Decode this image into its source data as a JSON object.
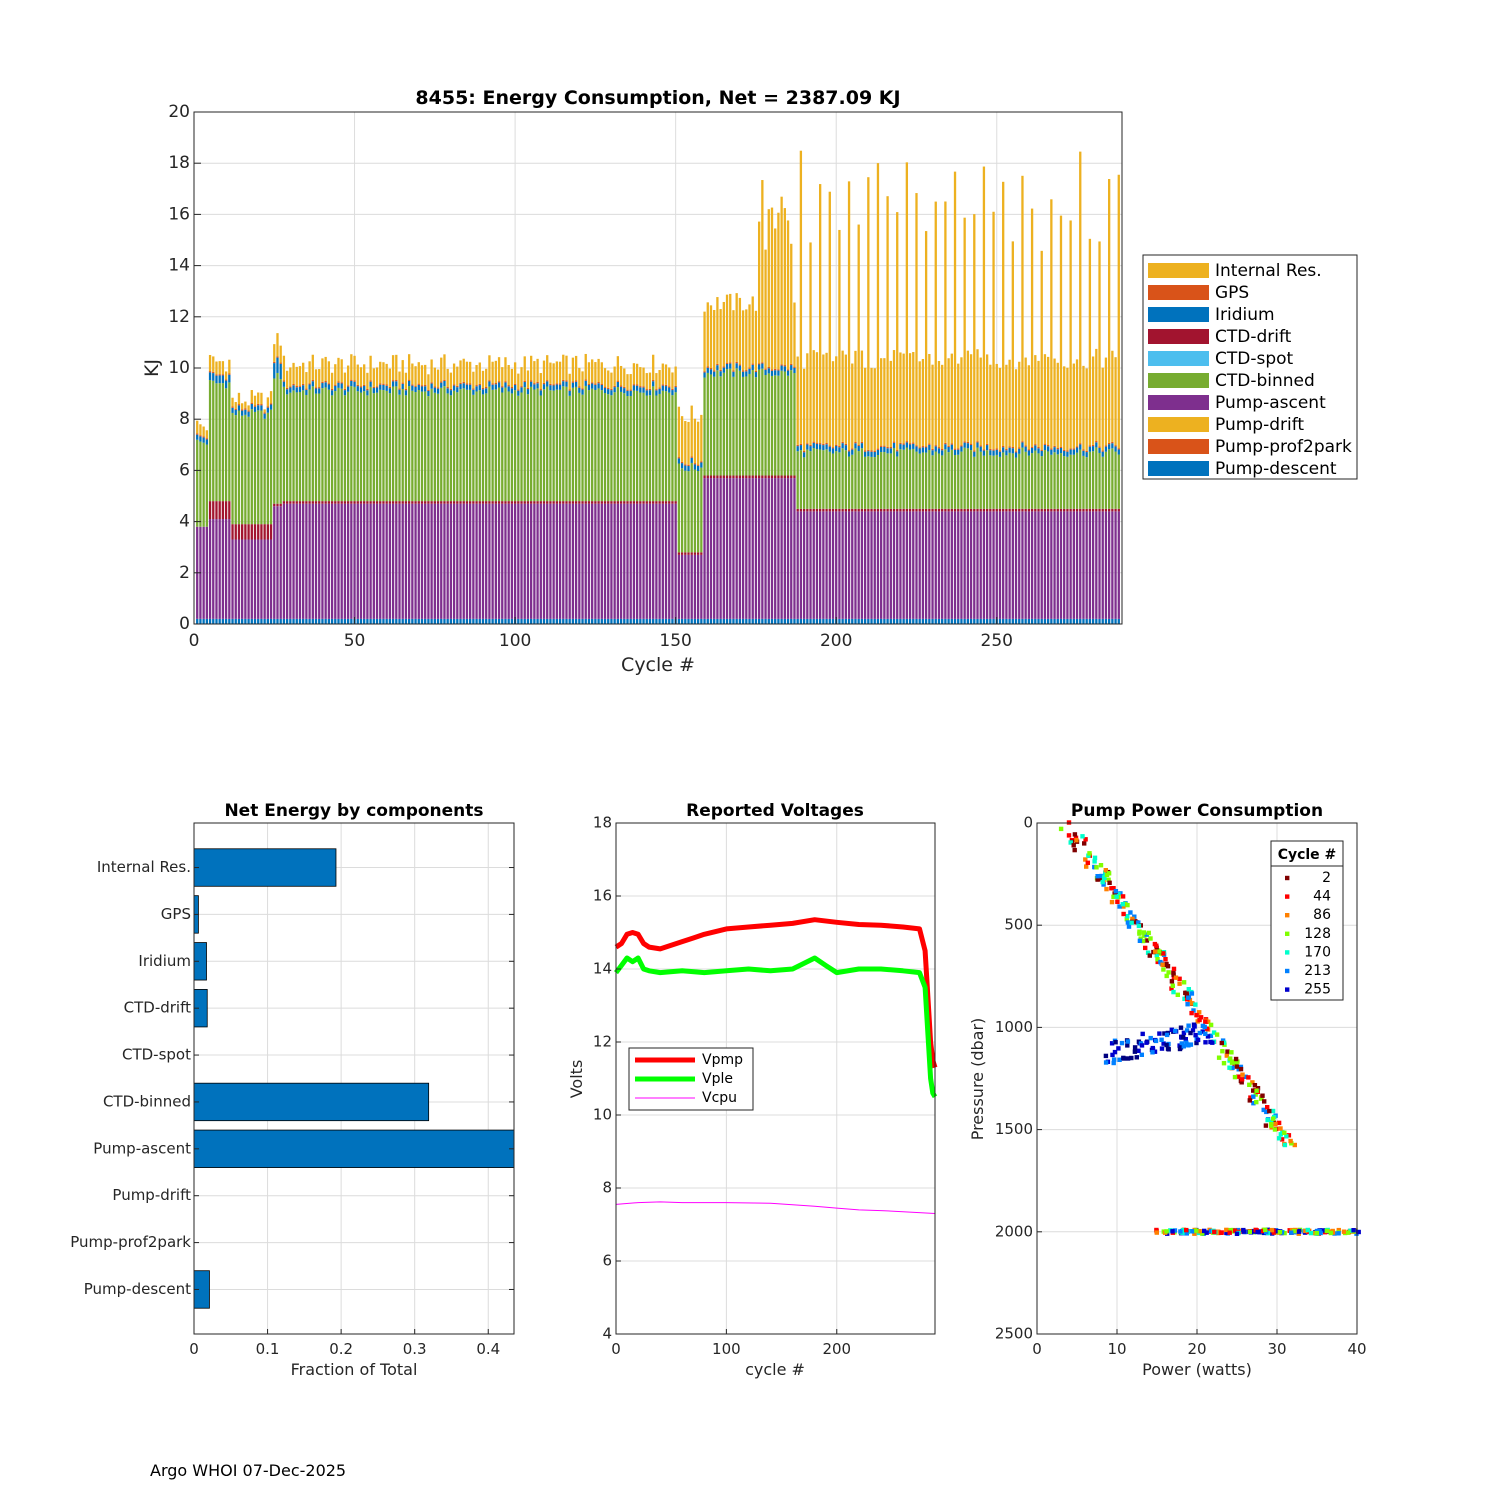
{
  "footer": "Argo WHOI 07-Dec-2025",
  "chart_data": [
    {
      "id": "energy",
      "type": "bar",
      "stacked": true,
      "title": "8455: Energy Consumption,  Net = 2387.09 KJ",
      "xlabel": "Cycle #",
      "ylabel": "KJ",
      "xlim": [
        0,
        289
      ],
      "ylim": [
        0,
        20
      ],
      "xticks": [
        0,
        50,
        100,
        150,
        200,
        250
      ],
      "yticks": [
        0,
        2,
        4,
        6,
        8,
        10,
        12,
        14,
        16,
        18,
        20
      ],
      "grid": true,
      "legend_location": "outside-right",
      "series_colors": {
        "Internal Res.": "#EDB120",
        "GPS": "#D95319",
        "Iridium": "#0072BD",
        "CTD-drift": "#A2142F",
        "CTD-spot": "#4DBEEE",
        "CTD-binned": "#77AC30",
        "Pump-ascent": "#7E2F8E",
        "Pump-drift": "#EDB120",
        "Pump-prof2park": "#D95319",
        "Pump-descent": "#0072BD"
      },
      "legend": [
        "Internal Res.",
        "GPS",
        "Iridium",
        "CTD-drift",
        "CTD-spot",
        "CTD-binned",
        "Pump-ascent",
        "Pump-drift",
        "Pump-prof2park",
        "Pump-descent"
      ],
      "segments_approx": [
        {
          "cycles": [
            1,
            4
          ],
          "Pump-descent": 0.2,
          "Pump-ascent": 3.6,
          "CTD-drift": 0.0,
          "CTD-binned": 3.3,
          "Iridium": 0.2,
          "GPS": 0.05,
          "Internal Res.": 0.4
        },
        {
          "cycles": [
            5,
            11
          ],
          "Pump-descent": 0.2,
          "Pump-ascent": 3.9,
          "CTD-drift": 0.7,
          "CTD-binned": 4.6,
          "Iridium": 0.3,
          "GPS": 0.05,
          "Internal Res.": 0.5
        },
        {
          "cycles": [
            12,
            24
          ],
          "Pump-descent": 0.2,
          "Pump-ascent": 3.1,
          "CTD-drift": 0.6,
          "CTD-binned": 4.3,
          "Iridium": 0.2,
          "GPS": 0.05,
          "Internal Res.": 0.3
        },
        {
          "cycles": [
            25,
            27
          ],
          "Pump-descent": 0.2,
          "Pump-ascent": 4.4,
          "CTD-drift": 0.1,
          "CTD-binned": 5.0,
          "Iridium": 0.6,
          "GPS": 0.05,
          "Internal Res.": 0.8
        },
        {
          "cycles": [
            28,
            150
          ],
          "Pump-descent": 0.2,
          "Pump-ascent": 4.5,
          "CTD-drift": 0.1,
          "CTD-binned": 4.3,
          "Iridium": 0.2,
          "GPS": 0.05,
          "Internal Res.": 0.8
        },
        {
          "cycles": [
            151,
            158
          ],
          "Pump-descent": 0.2,
          "Pump-ascent": 2.5,
          "CTD-drift": 0.1,
          "CTD-binned": 3.3,
          "Iridium": 0.2,
          "GPS": 0.05,
          "Internal Res.": 1.8
        },
        {
          "cycles": [
            159,
            187
          ],
          "Pump-descent": 0.2,
          "Pump-ascent": 5.5,
          "CTD-drift": 0.1,
          "CTD-binned": 4.0,
          "Iridium": 0.2,
          "GPS": 0.05,
          "Internal Res.": 2.5
        },
        {
          "cycles": [
            188,
            289
          ],
          "Pump-descent": 0.2,
          "Pump-ascent": 4.2,
          "CTD-drift": 0.1,
          "CTD-binned": 2.2,
          "Iridium": 0.2,
          "GPS": 0.05,
          "Internal Res.": 3.4
        }
      ]
    },
    {
      "id": "components",
      "type": "barh",
      "title": "Net Energy by components",
      "xlabel": "Fraction of Total",
      "xlim": [
        0,
        0.435
      ],
      "xticks": [
        0,
        0.1,
        0.2,
        0.3,
        0.4
      ],
      "xtick_labels": [
        "0",
        "0.1",
        "0.2",
        "0.3",
        "0.4"
      ],
      "categories": [
        "Internal Res.",
        "GPS",
        "Iridium",
        "CTD-drift",
        "CTD-spot",
        "CTD-binned",
        "Pump-ascent",
        "Pump-drift",
        "Pump-prof2park",
        "Pump-descent"
      ],
      "values": [
        0.193,
        0.006,
        0.017,
        0.018,
        0.0,
        0.319,
        0.435,
        0.0,
        0.0,
        0.021
      ],
      "color": "#0072BD",
      "grid": true
    },
    {
      "id": "voltages",
      "type": "line",
      "title": "Reported Voltages",
      "xlabel": "cycle #",
      "ylabel": "Volts",
      "xlim": [
        0,
        289
      ],
      "ylim": [
        4,
        18
      ],
      "xticks": [
        0,
        100,
        200
      ],
      "yticks": [
        4,
        6,
        8,
        10,
        12,
        14,
        16,
        18
      ],
      "legend_location": "left-middle",
      "series": [
        {
          "name": "Vpmp",
          "color": "#FF0000",
          "width": 5,
          "x": [
            0,
            5,
            10,
            15,
            20,
            25,
            30,
            40,
            50,
            60,
            70,
            80,
            100,
            120,
            140,
            160,
            180,
            200,
            220,
            240,
            260,
            275,
            280,
            283,
            285,
            287,
            289
          ],
          "y": [
            14.6,
            14.7,
            14.95,
            15.0,
            14.95,
            14.7,
            14.6,
            14.55,
            14.65,
            14.75,
            14.85,
            14.95,
            15.1,
            15.15,
            15.2,
            15.25,
            15.35,
            15.28,
            15.22,
            15.2,
            15.15,
            15.1,
            14.5,
            13.0,
            12.0,
            11.5,
            11.3
          ]
        },
        {
          "name": "Vple",
          "color": "#00FF00",
          "width": 5,
          "x": [
            0,
            5,
            10,
            15,
            20,
            25,
            30,
            40,
            60,
            80,
            100,
            120,
            140,
            160,
            180,
            190,
            200,
            220,
            240,
            260,
            275,
            280,
            283,
            285,
            287,
            289
          ],
          "y": [
            13.9,
            14.1,
            14.3,
            14.2,
            14.3,
            14.0,
            13.95,
            13.9,
            13.95,
            13.9,
            13.95,
            14.0,
            13.95,
            14.0,
            14.3,
            14.1,
            13.9,
            14.0,
            14.0,
            13.95,
            13.9,
            13.5,
            12.0,
            11.0,
            10.6,
            10.5
          ]
        },
        {
          "name": "Vcpu",
          "color": "#FF00FF",
          "width": 1,
          "x": [
            0,
            20,
            40,
            60,
            80,
            100,
            140,
            180,
            200,
            220,
            240,
            260,
            289
          ],
          "y": [
            7.55,
            7.6,
            7.62,
            7.6,
            7.6,
            7.6,
            7.58,
            7.5,
            7.45,
            7.4,
            7.38,
            7.35,
            7.3
          ]
        }
      ]
    },
    {
      "id": "pump",
      "type": "scatter",
      "title": "Pump Power Consumption",
      "xlabel": "Power (watts)",
      "ylabel": "Pressure (dbar)",
      "xlim": [
        0,
        40
      ],
      "ylim": [
        0,
        2500
      ],
      "y_reversed": true,
      "xticks": [
        0,
        10,
        20,
        30,
        40
      ],
      "yticks": [
        0,
        500,
        1000,
        1500,
        2000,
        2500
      ],
      "legend_title": "Cycle #",
      "legend_location": "top-right",
      "groups": [
        {
          "cycle": "2",
          "color": "#800000"
        },
        {
          "cycle": "44",
          "color": "#FF0000"
        },
        {
          "cycle": "86",
          "color": "#FF8000"
        },
        {
          "cycle": "128",
          "color": "#80FF00"
        },
        {
          "cycle": "170",
          "color": "#00FFCC"
        },
        {
          "cycle": "213",
          "color": "#0080FF"
        },
        {
          "cycle": "255",
          "color": "#0000CD"
        }
      ],
      "clusters": [
        {
          "name": "diagonal",
          "from": [
            3.5,
            0
          ],
          "to": [
            32,
            1600
          ],
          "colors": [
            "#800000",
            "#FF0000",
            "#FF8000",
            "#80FF00",
            "#00FFCC",
            "#0080FF"
          ]
        },
        {
          "name": "bottom",
          "from": [
            15,
            2000
          ],
          "to": [
            40,
            2000
          ],
          "colors": [
            "#0000CD",
            "#0080FF",
            "#00FFCC",
            "#80FF00",
            "#FF8000",
            "#FF0000"
          ]
        },
        {
          "name": "mid",
          "from": [
            9,
            1120
          ],
          "to": [
            22,
            1020
          ],
          "colors": [
            "#0000CD",
            "#000080",
            "#0080FF"
          ]
        }
      ]
    }
  ]
}
